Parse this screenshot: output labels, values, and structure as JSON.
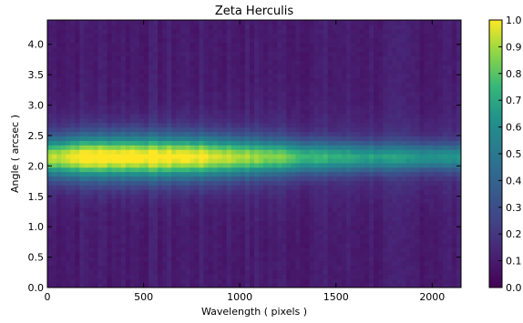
{
  "chart_data": {
    "type": "heatmap",
    "title": "Zeta Herculis",
    "xlabel": "Wavelength ( pixels )",
    "ylabel": "Angle ( arcsec )",
    "xlim": [
      0,
      2150
    ],
    "ylim": [
      0,
      4.4
    ],
    "x_ticks": [
      0,
      500,
      1000,
      1500,
      2000
    ],
    "x_tick_labels": [
      "0",
      "500",
      "1000",
      "1500",
      "2000"
    ],
    "y_ticks": [
      0.0,
      0.5,
      1.0,
      1.5,
      2.0,
      2.5,
      3.0,
      3.5,
      4.0
    ],
    "y_tick_labels": [
      "0.0",
      "0.5",
      "1.0",
      "1.5",
      "2.0",
      "2.5",
      "3.0",
      "3.5",
      "4.0"
    ],
    "colorbar": {
      "range": [
        0.0,
        1.0
      ],
      "ticks": [
        0.0,
        0.1,
        0.2,
        0.3,
        0.4,
        0.5,
        0.6,
        0.7,
        0.8,
        0.9,
        1.0
      ],
      "tick_labels": [
        "0.0",
        "0.1",
        "0.2",
        "0.3",
        "0.4",
        "0.5",
        "0.6",
        "0.7",
        "0.8",
        "0.9",
        "1.0"
      ],
      "colormap": "viridis"
    },
    "band_center_angle": 2.15,
    "band_peak_intensity": [
      {
        "x": 0,
        "value": 0.8
      },
      {
        "x": 200,
        "value": 0.92
      },
      {
        "x": 500,
        "value": 0.92
      },
      {
        "x": 800,
        "value": 0.88
      },
      {
        "x": 1000,
        "value": 0.8
      },
      {
        "x": 1300,
        "value": 0.7
      },
      {
        "x": 1600,
        "value": 0.62
      },
      {
        "x": 1900,
        "value": 0.57
      },
      {
        "x": 2150,
        "value": 0.55
      }
    ],
    "background_intensity": 0.1,
    "grid": false
  }
}
